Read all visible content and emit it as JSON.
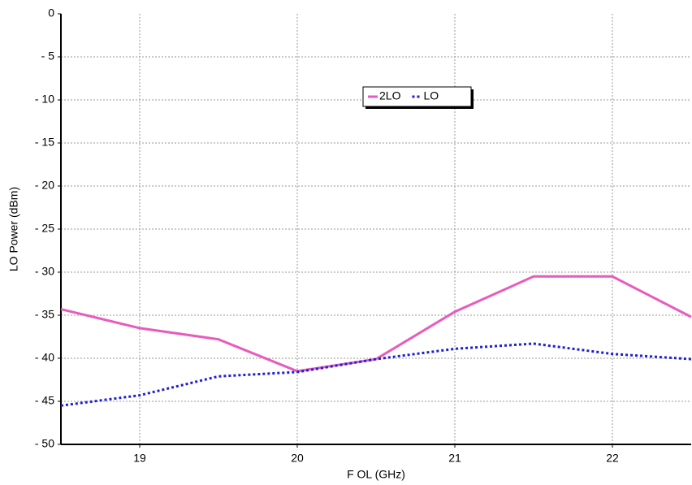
{
  "chart_data": {
    "type": "line",
    "x_label": "F OL (GHz)",
    "y_label": "LO Power (dBm)",
    "x": [
      18.5,
      19,
      19.5,
      20,
      20.5,
      21,
      21.5,
      22,
      22.5
    ],
    "series": [
      {
        "name": "2LO",
        "color": "#e85bbd",
        "style": "solid",
        "values": [
          -34.3,
          -36.5,
          -37.8,
          -41.5,
          -40.1,
          -34.6,
          -30.5,
          -30.5,
          -35.2
        ]
      },
      {
        "name": "LO",
        "color": "#1f1fd6",
        "style": "dotted",
        "values": [
          -45.5,
          -44.3,
          -42.1,
          -41.6,
          -40.1,
          -38.9,
          -38.3,
          -39.5,
          -40.1
        ]
      }
    ],
    "xlim": [
      18.5,
      22.5
    ],
    "xticks": [
      19,
      20,
      21,
      22
    ],
    "ylim": [
      -50,
      0
    ],
    "yticks": [
      {
        "value": -50,
        "label": "- 50"
      },
      {
        "value": -45,
        "label": "- 45"
      },
      {
        "value": -40,
        "label": "- 40"
      },
      {
        "value": -35,
        "label": "- 35"
      },
      {
        "value": -30,
        "label": "- 30"
      },
      {
        "value": -25,
        "label": "- 25"
      },
      {
        "value": -20,
        "label": "- 20"
      },
      {
        "value": -15,
        "label": "- 15"
      },
      {
        "value": -10,
        "label": "- 10"
      },
      {
        "value": -5,
        "label": "- 5"
      },
      0
    ],
    "grid": true
  }
}
